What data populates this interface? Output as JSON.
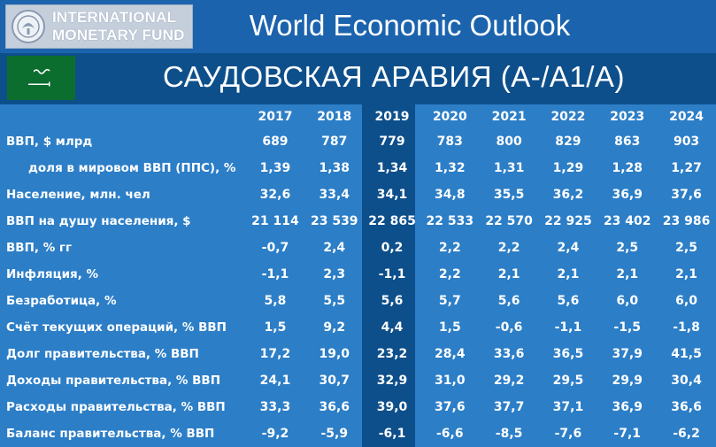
{
  "header": {
    "org_name_line1": "INTERNATIONAL",
    "org_name_line2": "MONETARY FUND",
    "logo_icon": "imf-seal-icon",
    "report_title": "World Economic Outlook",
    "country_title": "САУДОВСКАЯ АРАВИЯ (A-/A1/A)",
    "flag_icon": "saudi-arabia-flag-icon"
  },
  "colors": {
    "background": "#0d4f8b",
    "table_background": "#2c7ec7",
    "highlight_column": "#0d4f8b",
    "flag_green": "#0b6e2f",
    "text": "#ffffff"
  },
  "table": {
    "years": [
      "2017",
      "2018",
      "2019",
      "2020",
      "2021",
      "2022",
      "2023",
      "2024"
    ],
    "highlighted_year": "2019",
    "rows": [
      {
        "label": "ВВП, $ млрд",
        "values": [
          "689",
          "787",
          "779",
          "783",
          "800",
          "829",
          "863",
          "903"
        ]
      },
      {
        "label": "доля в мировом ВВП (ППС), %",
        "indent": true,
        "values": [
          "1,39",
          "1,38",
          "1,34",
          "1,32",
          "1,31",
          "1,29",
          "1,28",
          "1,27"
        ]
      },
      {
        "label": "Население, млн. чел",
        "values": [
          "32,6",
          "33,4",
          "34,1",
          "34,8",
          "35,5",
          "36,2",
          "36,9",
          "37,6"
        ]
      },
      {
        "label": "ВВП на душу населения, $",
        "values": [
          "21 114",
          "23 539",
          "22 865",
          "22 533",
          "22 570",
          "22 925",
          "23 402",
          "23 986"
        ]
      },
      {
        "label": "ВВП, % гг",
        "values": [
          "-0,7",
          "2,4",
          "0,2",
          "2,2",
          "2,2",
          "2,4",
          "2,5",
          "2,5"
        ]
      },
      {
        "label": "Инфляция, %",
        "values": [
          "-1,1",
          "2,3",
          "-1,1",
          "2,2",
          "2,1",
          "2,1",
          "2,1",
          "2,1"
        ]
      },
      {
        "label": "Безработица, %",
        "values": [
          "5,8",
          "5,5",
          "5,6",
          "5,7",
          "5,6",
          "5,6",
          "6,0",
          "6,0"
        ]
      },
      {
        "label": "Счёт текущих операций, % ВВП",
        "values": [
          "1,5",
          "9,2",
          "4,4",
          "1,5",
          "-0,6",
          "-1,1",
          "-1,5",
          "-1,8"
        ]
      },
      {
        "label": "Долг правительства, % ВВП",
        "values": [
          "17,2",
          "19,0",
          "23,2",
          "28,4",
          "33,6",
          "36,5",
          "37,9",
          "41,5"
        ]
      },
      {
        "label": "Доходы правительства, % ВВП",
        "values": [
          "24,1",
          "30,7",
          "32,9",
          "31,0",
          "29,2",
          "29,5",
          "29,9",
          "30,4"
        ]
      },
      {
        "label": "Расходы правительства, % ВВП",
        "values": [
          "33,3",
          "36,6",
          "39,0",
          "37,6",
          "37,7",
          "37,1",
          "36,9",
          "36,6"
        ]
      },
      {
        "label": "Баланс правительства, % ВВП",
        "values": [
          "-9,2",
          "-5,9",
          "-6,1",
          "-6,6",
          "-8,5",
          "-7,6",
          "-7,1",
          "-6,2"
        ]
      }
    ]
  }
}
